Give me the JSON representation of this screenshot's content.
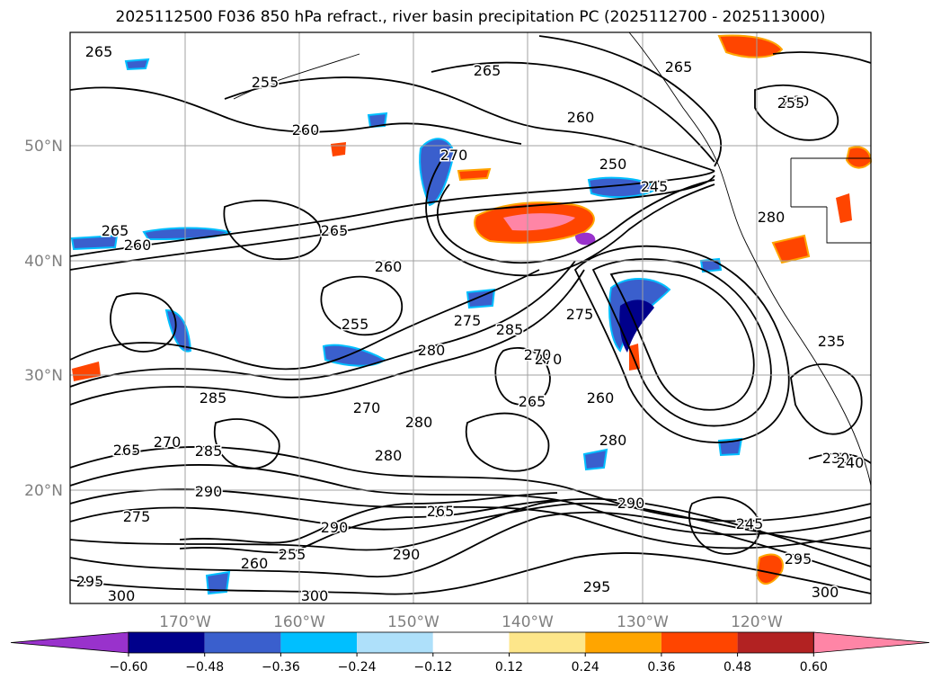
{
  "title": "2025112500 F036 850 hPa refract., river basin precipitation PC (2025112700 - 2025113000)",
  "map": {
    "lat_labels": [
      "50°N",
      "40°N",
      "30°N",
      "20°N"
    ],
    "lon_labels": [
      "170°W",
      "160°W",
      "150°W",
      "140°W",
      "130°W",
      "120°W"
    ],
    "contour_labels": [
      "265",
      "265",
      "260",
      "255",
      "260",
      "270",
      "250",
      "245",
      "275",
      "270",
      "260",
      "265",
      "265",
      "260",
      "255",
      "285",
      "280",
      "275",
      "285",
      "270",
      "265",
      "260",
      "280",
      "270",
      "280",
      "280",
      "285",
      "290",
      "290",
      "265",
      "260",
      "255",
      "290",
      "295",
      "300",
      "300",
      "295",
      "290",
      "275",
      "270",
      "265",
      "245",
      "235",
      "230",
      "240",
      "295",
      "300",
      "280",
      "255",
      "265",
      "260"
    ],
    "colors": {
      "land_border": "#000000",
      "grid": "#a0a0a0"
    }
  },
  "colorbar": {
    "ticks": [
      "−0.60",
      "−0.48",
      "−0.36",
      "−0.24",
      "−0.12",
      "0.12",
      "0.24",
      "0.36",
      "0.48",
      "0.60"
    ],
    "colors": [
      "#9932cc",
      "#00008b",
      "#3a5fcd",
      "#00bfff",
      "#aee0fa",
      "#ffffff",
      "#fde68a",
      "#ffa500",
      "#ff4500",
      "#b22222",
      "#ff85a6"
    ]
  }
}
